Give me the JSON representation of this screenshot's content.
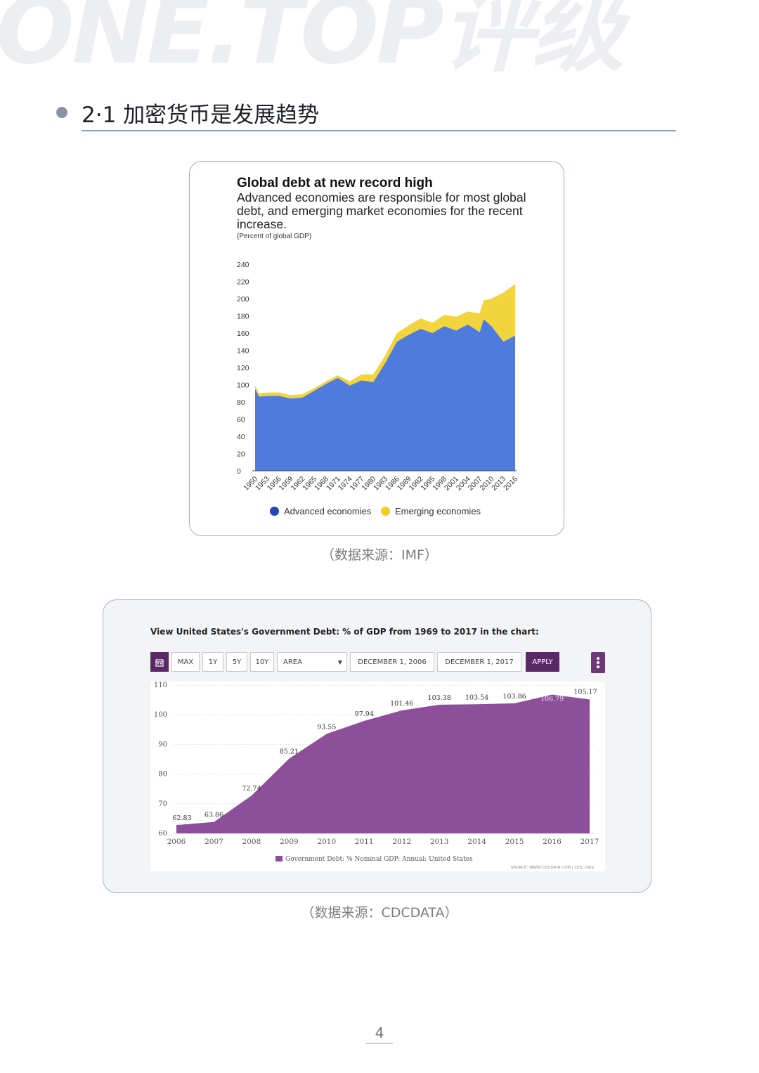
{
  "watermark": "ONE.TOP评级",
  "section": {
    "title": "2·1 加密货币是发展趋势"
  },
  "figure1": {
    "caption": "（数据来源：IMF）",
    "chart_data": {
      "type": "area",
      "title": "Global debt at new record high",
      "subtitle": "Advanced economies are responsible for most global debt, and emerging market economies for the recent increase.",
      "unit_label": "(Percent of global GDP)",
      "ylim": [
        0,
        240
      ],
      "y_ticks": [
        0,
        20,
        40,
        60,
        80,
        100,
        120,
        140,
        160,
        180,
        200,
        220,
        240
      ],
      "x_ticks": [
        "1950",
        "1953",
        "1956",
        "1959",
        "1962",
        "1965",
        "1968",
        "1971",
        "1974",
        "1977",
        "1980",
        "1983",
        "1986",
        "1989",
        "1992",
        "1995",
        "1998",
        "2001",
        "2004",
        "2007",
        "2010",
        "2013",
        "2016"
      ],
      "stacked": true,
      "legend_position": "bottom",
      "colors": {
        "advanced": "#4f7bdc",
        "emerging": "#f2d43d",
        "advanced_dot": "#1f47b5",
        "emerging_dot": "#f2cd1f"
      },
      "x": [
        1950,
        1951,
        1953,
        1956,
        1959,
        1962,
        1965,
        1968,
        1971,
        1974,
        1977,
        1980,
        1983,
        1986,
        1989,
        1992,
        1995,
        1998,
        2001,
        2004,
        2007,
        2008,
        2010,
        2013,
        2016
      ],
      "series": [
        {
          "name": "Advanced economies",
          "values": [
            95,
            86,
            87,
            87,
            84,
            85,
            93,
            101,
            108,
            99,
            105,
            103,
            125,
            150,
            158,
            165,
            160,
            168,
            163,
            170,
            161,
            176,
            168,
            150,
            157
          ]
        },
        {
          "name": "Emerging economies",
          "values": [
            4,
            4,
            4,
            4,
            4,
            4,
            3,
            3,
            3,
            5,
            7,
            9,
            9,
            10,
            11,
            12,
            12,
            13,
            16,
            15,
            22,
            22,
            32,
            57,
            60
          ]
        }
      ]
    }
  },
  "figure2": {
    "caption": "（数据来源：CDCDATA）",
    "header": "View United States's Government Debt: % of GDP from 1969 to 2017 in the chart:",
    "toolbar": {
      "calendar_icon": "calendar-icon",
      "max": "MAX",
      "y1": "1Y",
      "y5": "5Y",
      "y10": "10Y",
      "chart_type": "AREA",
      "start_date": "DECEMBER 1, 2006",
      "end_date": "DECEMBER 1, 2017",
      "apply": "APPLY"
    },
    "source": "SOURCE: WWW.CEICDATA.COM | CEIC Data",
    "chart_data": {
      "type": "area",
      "categories": [
        "2006",
        "2007",
        "2008",
        "2009",
        "2010",
        "2011",
        "2012",
        "2013",
        "2014",
        "2015",
        "2016",
        "2017"
      ],
      "series": [
        {
          "name": "Government Debt: % Nominal GDP: Annual: United States",
          "values": [
            62.83,
            63.86,
            72.74,
            85.21,
            93.55,
            97.94,
            101.46,
            103.38,
            103.54,
            103.86,
            106.79,
            105.17
          ]
        }
      ],
      "data_labels": [
        "62.83",
        "63.86",
        "72.74",
        "85.21",
        "93.55",
        "97.94",
        "101.46",
        "103.38",
        "103.54",
        "103.86",
        "106.79",
        "105.17"
      ],
      "ylim": [
        60,
        110
      ],
      "y_ticks": [
        60,
        70,
        80,
        90,
        100,
        110
      ],
      "legend_position": "bottom",
      "color": "#8e4f9a",
      "grid": true
    }
  },
  "page": {
    "number": "4"
  }
}
